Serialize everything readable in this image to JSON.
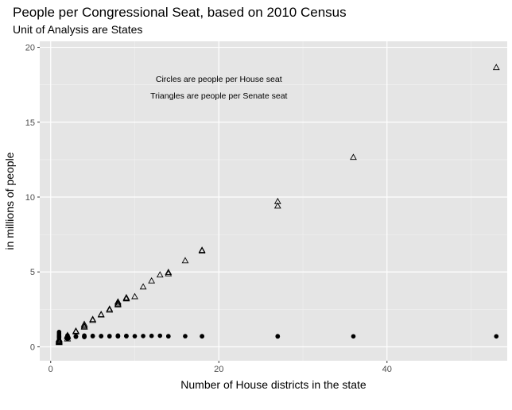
{
  "chart_data": {
    "type": "scatter",
    "title": "People per Congressional Seat, based on 2010 Census",
    "subtitle": "Unit of Analysis are States",
    "xlabel": "Number of House districts in the state",
    "ylabel": "in millions of people",
    "xlim": [
      -1.3,
      54.3
    ],
    "ylim": [
      -0.93,
      20.4
    ],
    "x_ticks": [
      0,
      20,
      40
    ],
    "y_ticks": [
      0,
      5,
      10,
      15,
      20
    ],
    "x_tick_labels": [
      "0",
      "20",
      "40"
    ],
    "y_tick_labels": [
      "0",
      "5",
      "10",
      "15",
      "20"
    ],
    "grid": true,
    "annotations": [
      {
        "text": "Circles are people per House seat",
        "x": 20,
        "y": 17.9
      },
      {
        "text": "Triangles are people per Senate seat",
        "x": 20,
        "y": 16.8
      }
    ],
    "series": [
      {
        "marker": "circle",
        "points": [
          [
            1,
            0.57
          ],
          [
            1,
            0.63
          ],
          [
            1,
            0.68
          ],
          [
            1,
            0.72
          ],
          [
            1,
            0.81
          ],
          [
            1,
            0.9
          ],
          [
            1,
            0.99
          ],
          [
            2,
            0.53
          ],
          [
            2,
            0.66
          ],
          [
            2,
            0.68
          ],
          [
            2,
            0.76
          ],
          [
            3,
            0.67
          ],
          [
            3,
            0.69
          ],
          [
            3,
            0.7
          ],
          [
            4,
            0.66
          ],
          [
            4,
            0.66
          ],
          [
            4,
            0.7
          ],
          [
            4,
            0.75
          ],
          [
            5,
            0.71
          ],
          [
            5,
            0.73
          ],
          [
            6,
            0.71
          ],
          [
            6,
            0.72
          ],
          [
            7,
            0.7
          ],
          [
            7,
            0.72
          ],
          [
            8,
            0.7
          ],
          [
            8,
            0.71
          ],
          [
            8,
            0.73
          ],
          [
            8,
            0.75
          ],
          [
            9,
            0.71
          ],
          [
            9,
            0.72
          ],
          [
            9,
            0.73
          ],
          [
            10,
            0.71
          ],
          [
            11,
            0.72
          ],
          [
            12,
            0.73
          ],
          [
            13,
            0.74
          ],
          [
            14,
            0.7
          ],
          [
            14,
            0.71
          ],
          [
            16,
            0.71
          ],
          [
            18,
            0.7
          ],
          [
            18,
            0.71
          ],
          [
            27,
            0.69
          ],
          [
            27,
            0.71
          ],
          [
            36,
            0.7
          ],
          [
            53,
            0.7
          ]
        ]
      },
      {
        "marker": "triangle",
        "points": [
          [
            1,
            0.28
          ],
          [
            1,
            0.32
          ],
          [
            1,
            0.34
          ],
          [
            1,
            0.36
          ],
          [
            1,
            0.41
          ],
          [
            1,
            0.45
          ],
          [
            1,
            0.5
          ],
          [
            2,
            0.53
          ],
          [
            2,
            0.66
          ],
          [
            2,
            0.68
          ],
          [
            2,
            0.76
          ],
          [
            3,
            1.0
          ],
          [
            3,
            1.03
          ],
          [
            3,
            1.05
          ],
          [
            4,
            1.32
          ],
          [
            4,
            1.33
          ],
          [
            4,
            1.4
          ],
          [
            4,
            1.5
          ],
          [
            5,
            1.77
          ],
          [
            5,
            1.83
          ],
          [
            6,
            2.13
          ],
          [
            6,
            2.16
          ],
          [
            7,
            2.45
          ],
          [
            7,
            2.52
          ],
          [
            8,
            2.8
          ],
          [
            8,
            2.84
          ],
          [
            8,
            2.92
          ],
          [
            8,
            3.0
          ],
          [
            9,
            3.2
          ],
          [
            9,
            3.24
          ],
          [
            9,
            3.28
          ],
          [
            10,
            3.35
          ],
          [
            11,
            4.0
          ],
          [
            12,
            4.4
          ],
          [
            13,
            4.8
          ],
          [
            14,
            4.88
          ],
          [
            14,
            4.97
          ],
          [
            16,
            5.75
          ],
          [
            18,
            6.4
          ],
          [
            18,
            6.45
          ],
          [
            27,
            9.4
          ],
          [
            27,
            9.7
          ],
          [
            36,
            12.65
          ],
          [
            53,
            18.65
          ]
        ]
      }
    ]
  }
}
